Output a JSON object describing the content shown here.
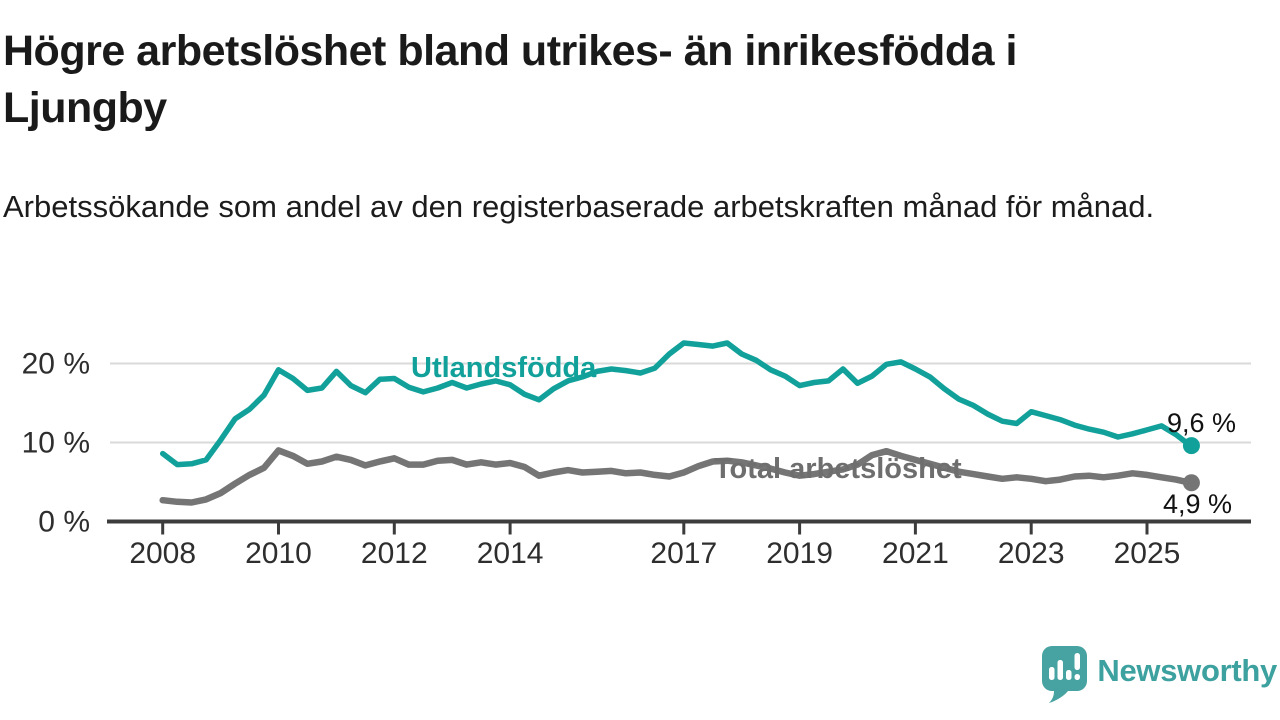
{
  "chart_data": {
    "type": "line",
    "title": "Högre arbetslöshet bland utrikes- än inrikesfödda i Ljungby",
    "subtitle": "Arbetssökande som andel av den registerbaserade arbetskraften månad för månad.",
    "unit": "%",
    "grid": "horizontal gridlines at 10 % and 20 %, legend as inline series labels",
    "x_axis": {
      "tick_values": [
        2008,
        2010,
        2012,
        2014,
        2017,
        2019,
        2021,
        2023,
        2025
      ],
      "tick_labels": [
        "2008",
        "2010",
        "2012",
        "2014",
        "2017",
        "2019",
        "2021",
        "2023",
        "2025"
      ],
      "range": [
        2007.1,
        2026.05
      ]
    },
    "y_axis": {
      "tick_values": [
        0,
        10,
        20
      ],
      "tick_labels": [
        "0 %",
        "10 %",
        "20 %"
      ],
      "range": [
        0,
        23
      ]
    },
    "x_years": [
      2008,
      2008.25,
      2008.5,
      2008.75,
      2009,
      2009.25,
      2009.5,
      2009.75,
      2010,
      2010.25,
      2010.5,
      2010.75,
      2011,
      2011.25,
      2011.5,
      2011.75,
      2012,
      2012.25,
      2012.5,
      2012.75,
      2013,
      2013.25,
      2013.5,
      2013.75,
      2014,
      2014.25,
      2014.5,
      2014.75,
      2015,
      2015.25,
      2015.5,
      2015.75,
      2016,
      2016.25,
      2016.5,
      2016.75,
      2017,
      2017.25,
      2017.5,
      2017.75,
      2018,
      2018.25,
      2018.5,
      2018.75,
      2019,
      2019.25,
      2019.5,
      2019.75,
      2020,
      2020.25,
      2020.5,
      2020.75,
      2021,
      2021.25,
      2021.5,
      2021.75,
      2022,
      2022.25,
      2022.5,
      2022.75,
      2023,
      2023.25,
      2023.5,
      2023.75,
      2024,
      2024.25,
      2024.5,
      2024.75,
      2025,
      2025.25,
      2025.5,
      2025.75
    ],
    "series": [
      {
        "name": "Utlandsfödda",
        "color": "#12a19a",
        "label_color": "#12a19a",
        "end_label": "9,6 %",
        "end_value": 9.6,
        "values": [
          8.6,
          7.2,
          7.3,
          7.8,
          10.3,
          13.0,
          14.2,
          16.0,
          19.2,
          18.1,
          16.6,
          16.9,
          19.0,
          17.2,
          16.3,
          18.0,
          18.1,
          17.0,
          16.4,
          16.9,
          17.6,
          16.9,
          17.4,
          17.8,
          17.3,
          16.1,
          15.4,
          16.8,
          17.8,
          18.3,
          19.0,
          19.3,
          19.1,
          18.8,
          19.4,
          21.2,
          22.6,
          22.4,
          22.2,
          22.6,
          21.2,
          20.4,
          19.2,
          18.4,
          17.2,
          17.6,
          17.8,
          19.3,
          17.5,
          18.4,
          19.9,
          20.2,
          19.3,
          18.3,
          16.8,
          15.5,
          14.7,
          13.6,
          12.7,
          12.4,
          13.9,
          13.4,
          12.9,
          12.2,
          11.7,
          11.3,
          10.7,
          11.1,
          11.6,
          12.1,
          11.0,
          9.6
        ]
      },
      {
        "name": "Total arbetslöshet",
        "color": "#757575",
        "label_color": "#6e6e6e",
        "end_label": "4,9 %",
        "end_value": 4.9,
        "values": [
          2.7,
          2.5,
          2.4,
          2.8,
          3.6,
          4.8,
          5.9,
          6.8,
          9.0,
          8.3,
          7.3,
          7.6,
          8.2,
          7.8,
          7.1,
          7.6,
          8.0,
          7.2,
          7.2,
          7.7,
          7.8,
          7.2,
          7.5,
          7.2,
          7.4,
          6.9,
          5.8,
          6.2,
          6.5,
          6.2,
          6.3,
          6.4,
          6.1,
          6.2,
          5.9,
          5.7,
          6.2,
          7.0,
          7.6,
          7.7,
          7.5,
          7.1,
          6.7,
          6.2,
          5.8,
          6.0,
          6.3,
          6.6,
          7.2,
          8.4,
          8.9,
          8.3,
          7.8,
          7.3,
          6.8,
          6.3,
          6.0,
          5.7,
          5.4,
          5.6,
          5.4,
          5.1,
          5.3,
          5.7,
          5.8,
          5.6,
          5.8,
          6.1,
          5.9,
          5.6,
          5.3,
          4.9
        ]
      }
    ]
  },
  "branding": {
    "logo_text": "Newsworthy"
  },
  "colors": {
    "accent_teal": "#12a19a",
    "series_gray": "#757575",
    "logo_teal": "#46a3a1",
    "logo_text_teal": "#3da19f",
    "title_text": "#1a1a1a",
    "axis_text": "#2e2e2e",
    "value_text": "#111111",
    "gridline": "#dadada",
    "axis_line": "#3c3c3c",
    "background": "#ffffff"
  }
}
